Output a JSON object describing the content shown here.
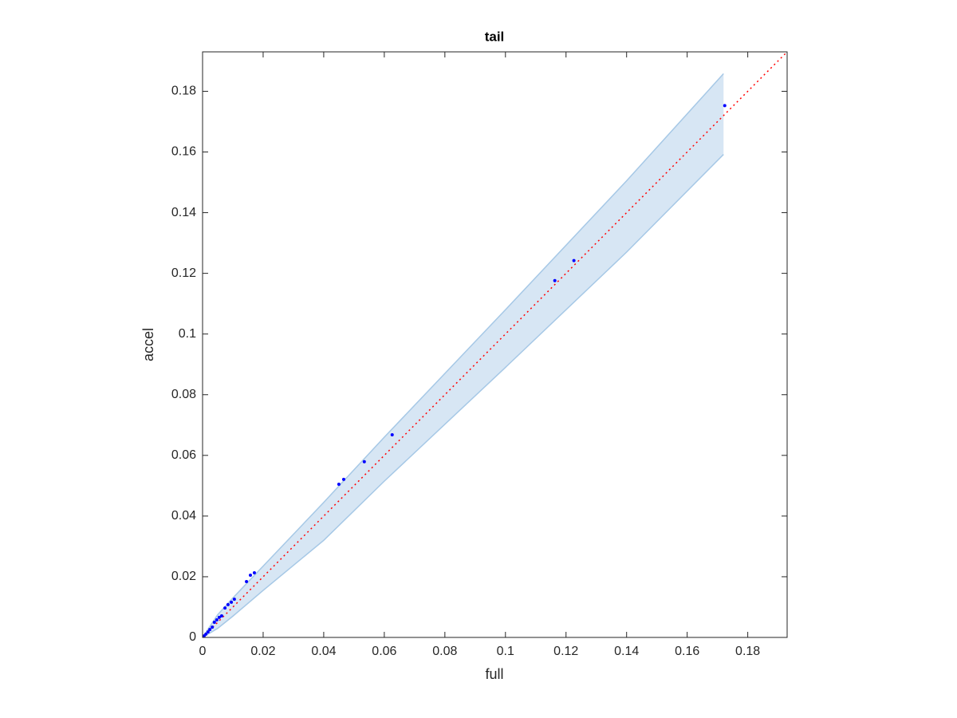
{
  "chart_data": {
    "type": "scatter",
    "title": "tail",
    "x_label": "full",
    "y_label": "accel",
    "xlim": [
      0,
      0.193
    ],
    "ylim": [
      0,
      0.193
    ],
    "xticks": [
      0,
      0.02,
      0.04,
      0.06,
      0.08,
      0.1,
      0.12,
      0.14,
      0.16,
      0.18
    ],
    "yticks": [
      0,
      0.02,
      0.04,
      0.06,
      0.08,
      0.1,
      0.12,
      0.14,
      0.16,
      0.18
    ],
    "band": {
      "color": "#a6c8e6",
      "x": [
        0,
        0.005,
        0.01,
        0.02,
        0.04,
        0.06,
        0.1,
        0.14,
        0.172
      ],
      "upper": [
        0,
        0.0075,
        0.013,
        0.0235,
        0.0445,
        0.066,
        0.108,
        0.1505,
        0.1858
      ],
      "lower": [
        0,
        0.003,
        0.007,
        0.0155,
        0.032,
        0.0515,
        0.089,
        0.127,
        0.1592
      ]
    },
    "reference": {
      "color": "#ff0000",
      "x": [
        0,
        0.193
      ],
      "values": [
        0,
        0.193
      ]
    },
    "series": [
      {
        "color": "#0000ff",
        "x": [
          0.1724,
          0.1226,
          0.1163,
          0.0626,
          0.0534,
          0.0466,
          0.045,
          0.0171,
          0.0158,
          0.0145,
          0.0105,
          0.0095,
          0.0084,
          0.0074,
          0.0063,
          0.0055,
          0.0047,
          0.0039,
          0.0032,
          0.0024,
          0.0018,
          0.0011,
          0.0005
        ],
        "values": [
          0.1753,
          0.1242,
          0.1176,
          0.0668,
          0.0579,
          0.0521,
          0.0505,
          0.0213,
          0.0205,
          0.0184,
          0.0126,
          0.0116,
          0.0108,
          0.0097,
          0.0071,
          0.0066,
          0.0058,
          0.005,
          0.0034,
          0.0026,
          0.0018,
          0.0011,
          0.0005
        ]
      }
    ]
  }
}
